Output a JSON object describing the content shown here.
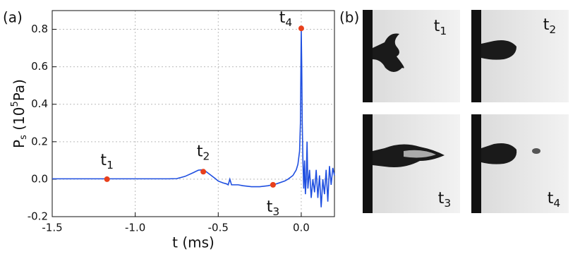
{
  "chart_data": {
    "type": "line",
    "panel_label": "(a)",
    "xlabel": "t (ms)",
    "ylabel": {
      "main": "P",
      "sub": "s",
      "pre": " (10",
      "sup": "5",
      "post": "Pa)"
    },
    "xlim": [
      -1.5,
      0.2
    ],
    "ylim": [
      -0.2,
      0.9
    ],
    "xticks": [
      -1.5,
      {
        "value": -1.0,
        "label": "-1.0"
      },
      -0.5,
      {
        "value": 0,
        "label": "0.0"
      }
    ],
    "yticks": [
      -0.2,
      {
        "value": 0,
        "label": "0.0"
      },
      0.2,
      0.4,
      0.6,
      0.8
    ],
    "grid": true,
    "x": [
      -1.5,
      -1.4,
      -1.3,
      -1.2,
      -1.1,
      -1.0,
      -0.9,
      -0.8,
      -0.75,
      -0.7,
      -0.65,
      -0.62,
      -0.6,
      -0.58,
      -0.55,
      -0.52,
      -0.5,
      -0.47,
      -0.45,
      -0.44,
      -0.43,
      -0.42,
      -0.38,
      -0.35,
      -0.3,
      -0.25,
      -0.2,
      -0.15,
      -0.1,
      -0.08,
      -0.05,
      -0.03,
      -0.02,
      -0.01,
      -0.005,
      0,
      0.003,
      0.006,
      0.01,
      0.015,
      0.02,
      0.025,
      0.03,
      0.035,
      0.04,
      0.05,
      0.06,
      0.07,
      0.08,
      0.09,
      0.1,
      0.11,
      0.12,
      0.13,
      0.14,
      0.15,
      0.16,
      0.17,
      0.18,
      0.19,
      0.2
    ],
    "series": [
      {
        "color": "#1f4fe0",
        "values": [
          0.002,
          0.002,
          0.002,
          0.002,
          0.002,
          0.002,
          0.002,
          0.002,
          0.003,
          0.015,
          0.035,
          0.048,
          0.05,
          0.045,
          0.025,
          0.005,
          -0.01,
          -0.02,
          -0.025,
          -0.03,
          0.0,
          -0.03,
          -0.03,
          -0.035,
          -0.04,
          -0.04,
          -0.035,
          -0.025,
          -0.01,
          0.0,
          0.02,
          0.05,
          0.08,
          0.15,
          0.3,
          0.8,
          0.6,
          0.3,
          0.1,
          -0.05,
          0.1,
          -0.08,
          0.0,
          0.2,
          -0.05,
          0.05,
          -0.1,
          0.0,
          -0.07,
          0.05,
          -0.1,
          0.02,
          -0.15,
          0.0,
          -0.08,
          0.05,
          -0.12,
          0.07,
          -0.03,
          0.06,
          0.02
        ]
      },
      {
        "type": "scatter",
        "color": "#e8401c",
        "x": [
          -1.17,
          -0.59,
          -0.17,
          0.0
        ],
        "values": [
          0.0,
          0.04,
          -0.03,
          0.805
        ],
        "labels": [
          {
            "base": "t",
            "sub": "1"
          },
          {
            "base": "t",
            "sub": "2"
          },
          {
            "base": "t",
            "sub": "3"
          },
          {
            "base": "t",
            "sub": "4"
          }
        ]
      }
    ]
  },
  "panel_b": {
    "label": "(b)",
    "photos": [
      {
        "base": "t",
        "sub": "1"
      },
      {
        "base": "t",
        "sub": "2"
      },
      {
        "base": "t",
        "sub": "3"
      },
      {
        "base": "t",
        "sub": "4"
      }
    ]
  }
}
